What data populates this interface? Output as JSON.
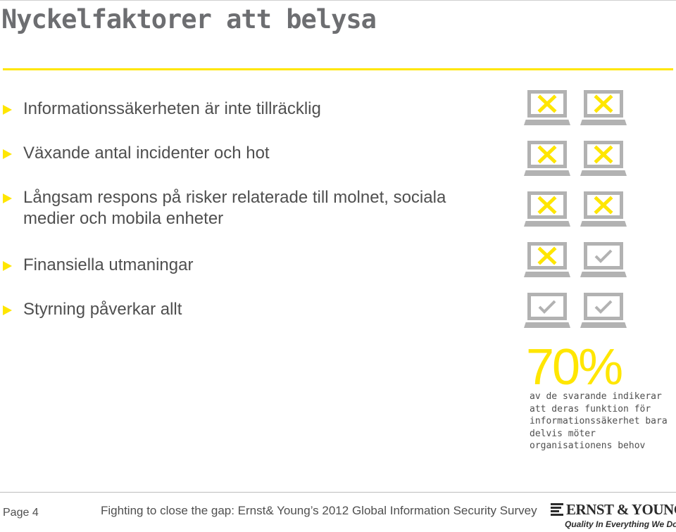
{
  "slide": {
    "title": "Nyckelfaktorer att belysa",
    "bullets": [
      {
        "text": "Informationssäkerheten är inte tillräcklig"
      },
      {
        "text": "Växande antal incidenter och hot"
      },
      {
        "text": "Långsam respons på risker relaterade till molnet, sociala medier och mobila enheter"
      },
      {
        "text": "Finansiella utmaningar"
      },
      {
        "text": "Styrning påverkar allt"
      }
    ]
  },
  "infographic": {
    "icon": "laptop-icon",
    "laptops": [
      {
        "mark": "x"
      },
      {
        "mark": "x"
      },
      {
        "mark": "x"
      },
      {
        "mark": "x"
      },
      {
        "mark": "x"
      },
      {
        "mark": "x"
      },
      {
        "mark": "x"
      },
      {
        "mark": "check"
      },
      {
        "mark": "check"
      },
      {
        "mark": "check"
      }
    ],
    "share_marked_x": 0.7,
    "stat": "70%",
    "caption_lines": [
      "av de svarande indikerar",
      "att deras funktion för",
      "informationssäkerhet bara",
      "delvis möter",
      "organisationens behov"
    ]
  },
  "footer": {
    "page": "Page 4",
    "source": "Fighting to close the gap: Ernst& Young’s 2012 Global Information Security Survey",
    "logo_brand": "ERNST & YOUNG",
    "logo_tagline": "Quality In Everything We Do"
  },
  "colors": {
    "accent": "#ffe600",
    "text": "#4f4f4f",
    "title": "#6d6e71",
    "icon_gray": "#b2b2b2"
  }
}
